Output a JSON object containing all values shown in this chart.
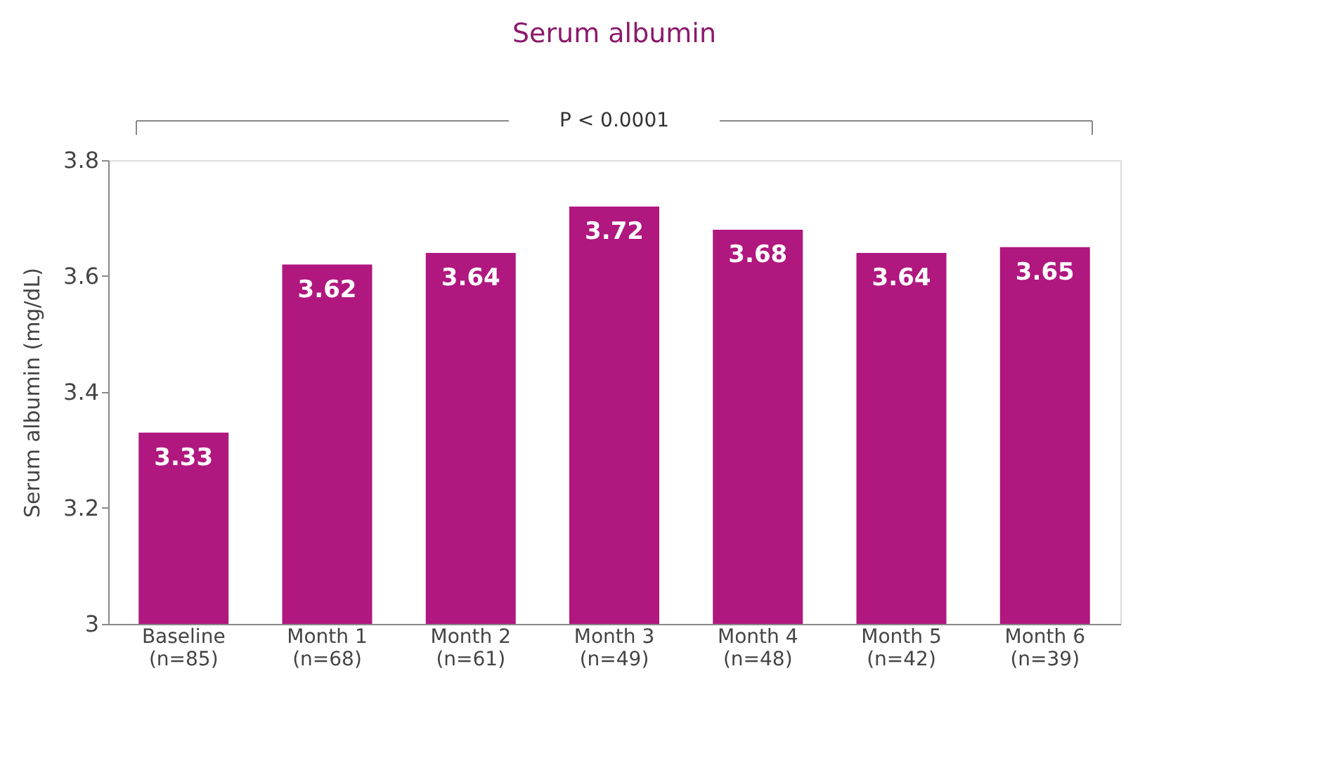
{
  "chart_data": {
    "type": "bar",
    "title": "Serum albumin",
    "ylabel": "Serum albumin (mg/dL)",
    "categories": [
      "Baseline\n(n=85)",
      "Month 1\n(n=68)",
      "Month 2\n(n=61)",
      "Month 3\n(n=49)",
      "Month 4\n(n=48)",
      "Month 5\n(n=42)",
      "Month 6\n(n=39)"
    ],
    "values": [
      3.33,
      3.62,
      3.64,
      3.72,
      3.68,
      3.64,
      3.65
    ],
    "color": "#b0177f",
    "ylim": [
      3,
      3.8
    ],
    "yticks": [
      {
        "value": 3,
        "label": "3"
      },
      3.2,
      3.4,
      3.6,
      3.8
    ],
    "data_labels": true,
    "grid": false,
    "annotations": [
      "P < 0.0001"
    ]
  }
}
